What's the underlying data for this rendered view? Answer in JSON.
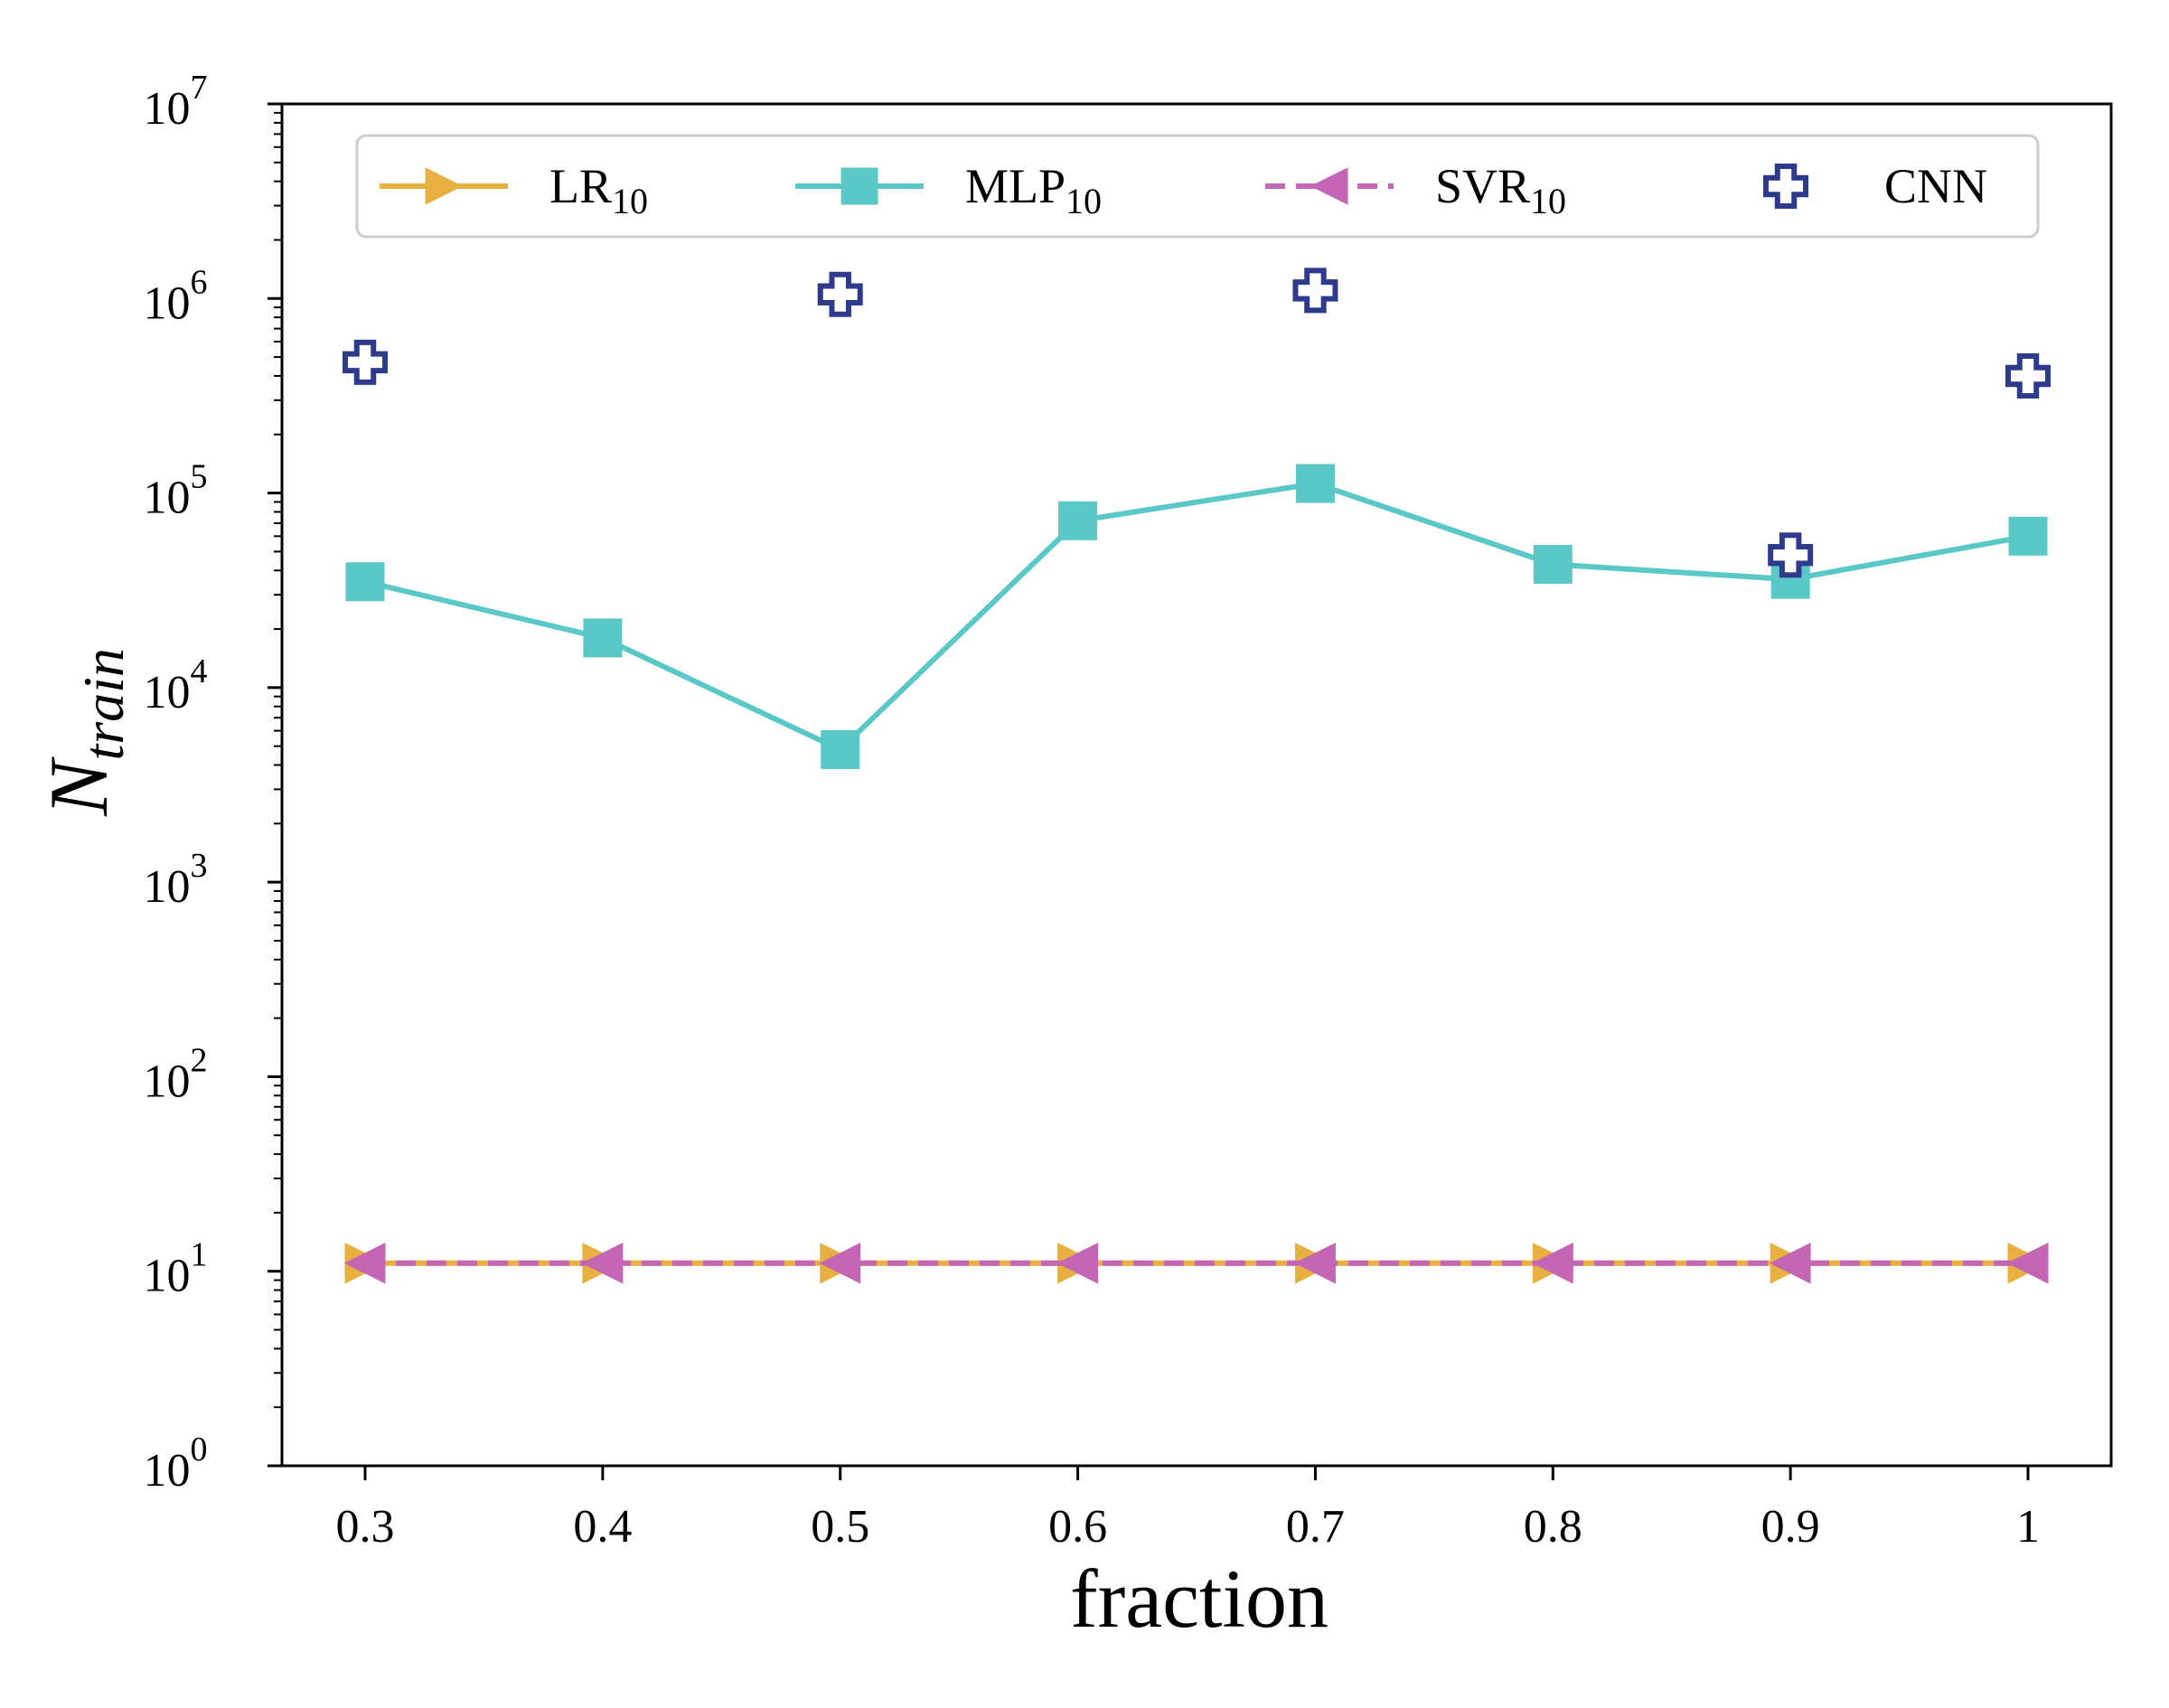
{
  "chart_data": {
    "type": "line",
    "title": "",
    "xlabel": "fraction",
    "ylabel_main": "N",
    "ylabel_sub": "train",
    "yscale": "log",
    "xlim": [
      0.265,
      1.035
    ],
    "ylim": [
      1,
      10000000
    ],
    "grid": false,
    "legend_position": "top",
    "x": [
      0.3,
      0.4,
      0.5,
      0.6,
      0.7,
      0.8,
      0.9,
      1.0
    ],
    "x_tick_labels": [
      "0.3",
      "0.4",
      "0.5",
      "0.6",
      "0.7",
      "0.8",
      "0.9",
      "1"
    ],
    "y_ticks": [
      {
        "value": 1,
        "base": "10",
        "exp": "0"
      },
      {
        "value": 10,
        "base": "10",
        "exp": "1"
      },
      {
        "value": 100,
        "base": "10",
        "exp": "2"
      },
      {
        "value": 1000,
        "base": "10",
        "exp": "3"
      },
      {
        "value": 10000,
        "base": "10",
        "exp": "4"
      },
      {
        "value": 100000,
        "base": "10",
        "exp": "5"
      },
      {
        "value": 1000000,
        "base": "10",
        "exp": "6"
      },
      {
        "value": 10000000,
        "base": "10",
        "exp": "7"
      }
    ],
    "series": [
      {
        "name": "LR",
        "sub": "10",
        "color": "#E8B040",
        "linestyle": "solid",
        "marker": "triangle-right",
        "values": [
          11,
          11,
          11,
          11,
          11,
          11,
          11,
          11
        ]
      },
      {
        "name": "MLP",
        "sub": "10",
        "color": "#5BC8C8",
        "linestyle": "solid",
        "marker": "square",
        "values": [
          35000,
          18000,
          4800,
          72000,
          112000,
          43000,
          36000,
          60000
        ]
      },
      {
        "name": "SVR",
        "sub": "10",
        "color": "#C466B4",
        "linestyle": "dashed",
        "marker": "triangle-left",
        "values": [
          11,
          11,
          11,
          11,
          11,
          11,
          11,
          11
        ]
      },
      {
        "name": "CNN",
        "sub": "",
        "color": "#2E3A8C",
        "linestyle": "none",
        "marker": "plus-hollow",
        "points": [
          [
            0.3,
            470000
          ],
          [
            0.5,
            1050000
          ],
          [
            0.7,
            1100000
          ],
          [
            0.9,
            48000
          ],
          [
            1.0,
            400000
          ]
        ]
      }
    ]
  }
}
